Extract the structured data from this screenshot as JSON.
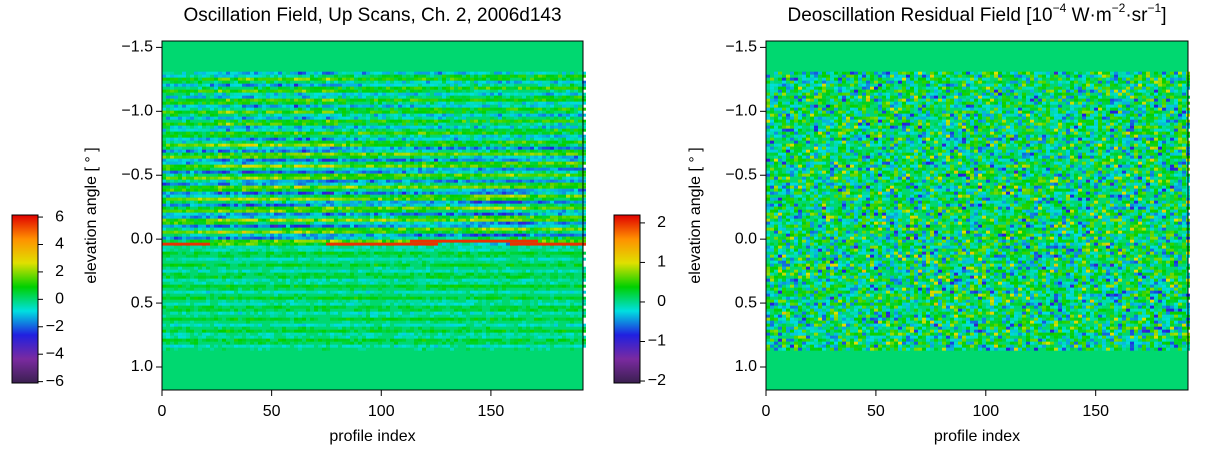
{
  "chart_data": [
    {
      "type": "heatmap",
      "title_parts": [
        {
          "text": "Oscillation Field, Up Scans, Ch. 2, 2006d143",
          "sup": false
        }
      ],
      "xlabel": "profile index",
      "ylabel": "elevation angle  [ ° ]",
      "xlim": [
        0,
        192
      ],
      "xticks": [
        0,
        50,
        100,
        150
      ],
      "ylim": [
        -1.55,
        1.18
      ],
      "y_inverted": true,
      "yticks": [
        {
          "value": -1.5,
          "label": "−1.5"
        },
        {
          "value": -1.0,
          "label": "−1.0"
        },
        {
          "value": -0.5,
          "label": "−0.5"
        },
        {
          "value": 0.0,
          "label": "0.0"
        },
        {
          "value": 0.5,
          "label": "0.5"
        },
        {
          "value": 1.0,
          "label": "1.0"
        }
      ],
      "clim": [
        -6.1,
        6.15
      ],
      "cticks": [
        {
          "value": 6,
          "label": "6"
        },
        {
          "value": 4,
          "label": "4"
        },
        {
          "value": 2,
          "label": "2"
        },
        {
          "value": 0,
          "label": "0"
        },
        {
          "value": -2,
          "label": "−2"
        },
        {
          "value": -4,
          "label": "−4"
        },
        {
          "value": -6,
          "label": "−6"
        }
      ],
      "colormap": [
        "#3a2050",
        "#7a2aa0",
        "#2020e0",
        "#00e0e0",
        "#00d000",
        "#e0e000",
        "#ff9000",
        "#e00000"
      ]
    },
    {
      "type": "heatmap",
      "title_parts": [
        {
          "text": "Deoscillation Residual Field [10",
          "sup": false
        },
        {
          "text": "−4",
          "sup": true
        },
        {
          "text": " W·m",
          "sup": false
        },
        {
          "text": "−2",
          "sup": true
        },
        {
          "text": "·sr",
          "sup": false
        },
        {
          "text": "−1",
          "sup": true
        },
        {
          "text": "]",
          "sup": false
        }
      ],
      "xlabel": "profile index",
      "ylabel": "elevation angle  [ ° ]",
      "xlim": [
        0,
        192
      ],
      "xticks": [
        0,
        50,
        100,
        150
      ],
      "ylim": [
        -1.55,
        1.18
      ],
      "y_inverted": true,
      "yticks": [
        {
          "value": -1.5,
          "label": "−1.5"
        },
        {
          "value": -1.0,
          "label": "−1.0"
        },
        {
          "value": -0.5,
          "label": "−0.5"
        },
        {
          "value": 0.0,
          "label": "0.0"
        },
        {
          "value": 0.5,
          "label": "0.5"
        },
        {
          "value": 1.0,
          "label": "1.0"
        }
      ],
      "clim": [
        -2.05,
        2.2
      ],
      "cticks": [
        {
          "value": 2,
          "label": "2"
        },
        {
          "value": 1,
          "label": "1"
        },
        {
          "value": 0,
          "label": "0"
        },
        {
          "value": -1,
          "label": "−1"
        },
        {
          "value": -2,
          "label": "−2"
        }
      ],
      "colormap": [
        "#3a2050",
        "#7a2aa0",
        "#2020e0",
        "#00e0e0",
        "#00d000",
        "#e0e000",
        "#ff9000",
        "#e00000"
      ]
    }
  ]
}
